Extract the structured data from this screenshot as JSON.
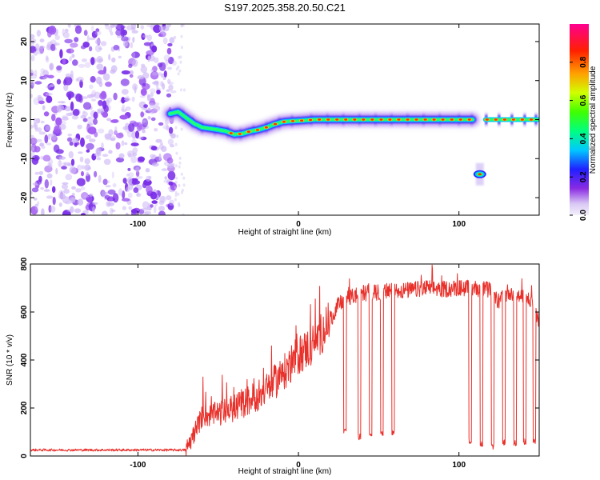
{
  "title": "S197.2025.358.20.50.C21",
  "colors": {
    "trace": "#e8302a",
    "noise": "#8a3cf0",
    "frame": "#000000",
    "colormap": [
      "#e0d4f8",
      "#8a2be2",
      "#2020ff",
      "#00c8ff",
      "#00ff80",
      "#40ff00",
      "#d0ff00",
      "#ffa000",
      "#ff2000",
      "#ff0090"
    ]
  },
  "chart_data": [
    {
      "id": "spectrogram",
      "type": "heatmap",
      "xlabel": "Height of straight line (km)",
      "ylabel": "Frequency (Hz)",
      "xlim": [
        -167,
        150
      ],
      "ylim": [
        -24.5,
        24.5
      ],
      "xticks": [
        -100,
        0,
        100
      ],
      "xtick_labels": [
        "-100",
        "0",
        "100"
      ],
      "yticks": [
        20,
        10,
        0,
        -10,
        -20
      ],
      "ytick_labels": [
        "20",
        "10",
        "0",
        "-10",
        "-20"
      ],
      "noise_region_x": [
        -167,
        -77
      ],
      "ridge": {
        "x": [
          -80,
          -75,
          -70,
          -65,
          -60,
          -55,
          -50,
          -45,
          -40,
          -35,
          -30,
          -25,
          -20,
          -15,
          -10,
          -5,
          0,
          10,
          20,
          40,
          60,
          80,
          100,
          108,
          116,
          130,
          150
        ],
        "freq": [
          1.5,
          2,
          0.5,
          -1,
          -2,
          -2.3,
          -2.6,
          -3,
          -3.8,
          -3.6,
          -3,
          -2.6,
          -2,
          -1.2,
          -0.6,
          -0.4,
          -0.3,
          0,
          0,
          0,
          0,
          0,
          0,
          0,
          0,
          0,
          0
        ]
      },
      "gaps_x": [
        [
          109,
          116
        ]
      ],
      "secondary_blob": {
        "x": 113,
        "freq": -14
      },
      "colorbar": {
        "label": "Normalized spectral amplitude",
        "range": [
          0,
          1
        ],
        "ticks": [
          0.0,
          0.2,
          0.4,
          0.6,
          0.8
        ],
        "tick_labels": [
          "0.0",
          "0.2",
          "0.4",
          "0.6",
          "0.8"
        ]
      }
    },
    {
      "id": "snr",
      "type": "line",
      "xlabel": "Height of straight line (km)",
      "ylabel": "SNR (10 * v/v)",
      "xlim": [
        -167,
        150
      ],
      "ylim": [
        0,
        800
      ],
      "xticks": [
        -100,
        0,
        100
      ],
      "xtick_labels": [
        "-100",
        "0",
        "100"
      ],
      "yticks": [
        0,
        200,
        400,
        600,
        800
      ],
      "ytick_labels": [
        "0",
        "200",
        "400",
        "600",
        "800"
      ],
      "trend": {
        "x": [
          -167,
          -70,
          -64,
          -60,
          -50,
          -40,
          -30,
          -20,
          -10,
          0,
          10,
          20,
          25,
          30,
          40,
          50,
          60,
          70,
          80,
          90,
          100,
          110,
          120,
          125,
          130,
          140,
          145,
          150
        ],
        "y": [
          25,
          25,
          110,
          165,
          175,
          200,
          235,
          275,
          340,
          420,
          470,
          570,
          630,
          655,
          680,
          680,
          690,
          690,
          700,
          695,
          700,
          700,
          690,
          640,
          680,
          660,
          650,
          560
        ]
      },
      "dropouts": {
        "x": [
          29,
          38,
          45,
          52,
          59,
          107,
          114,
          121,
          128,
          135,
          141,
          147
        ],
        "y": [
          100,
          80,
          95,
          90,
          100,
          60,
          50,
          40,
          55,
          55,
          60,
          60
        ]
      }
    }
  ]
}
